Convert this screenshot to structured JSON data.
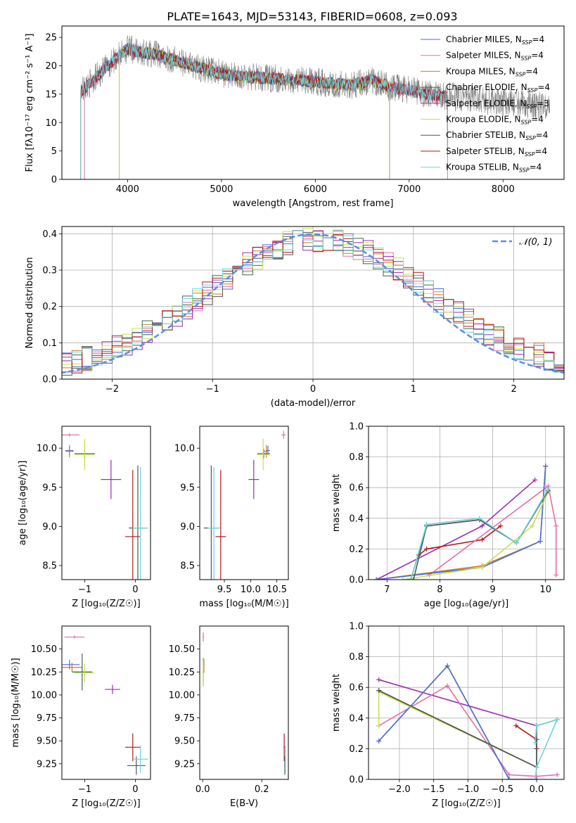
{
  "figure": {
    "title": "PLATE=1643, MJD=53143, FIBERID=0608, z=0.093"
  },
  "colors": {
    "Chabrier MILES": "#4a6fd6",
    "Salpeter MILES": "#e06fa8",
    "Kroupa MILES": "#d07a2a",
    "Chabrier ELODIE": "#3a6a50",
    "Salpeter ELODIE": "#9a2db0",
    "Kroupa ELODIE": "#c8e24a",
    "Chabrier STELIB": "#555555",
    "Salpeter STELIB": "#b21818",
    "Kroupa STELIB": "#6fd4dc",
    "data": "#808080",
    "gauss": "#5b8ee6"
  },
  "chart_data": [
    {
      "id": "spectrum",
      "type": "line",
      "title": "PLATE=1643, MJD=53143, FIBERID=0608, z=0.093",
      "xlabel": "wavelength [Angstrom, rest frame]",
      "ylabel": "Flux [fλ10⁻¹⁷ erg cm⁻² s⁻¹ A⁻¹]",
      "xlim": [
        3300,
        8650
      ],
      "ylim": [
        0,
        27
      ],
      "xticks": [
        4000,
        5000,
        6000,
        7000,
        8000
      ],
      "yticks": [
        0,
        5,
        10,
        15,
        20,
        25
      ],
      "grid": false,
      "legend_position": "top-right",
      "legend": [
        "Chabrier MILES, N_SSP=4",
        "Salpeter MILES, N_SSP=4",
        "Kroupa MILES, N_SSP=4",
        "Chabrier ELODIE, N_SSP=4",
        "Salpeter ELODIE, N_SSP=3",
        "Kroupa ELODIE, N_SSP=4",
        "Chabrier STELIB, N_SSP=4",
        "Salpeter STELIB, N_SSP=4",
        "Kroupa STELIB, N_SSP=4"
      ],
      "continuum": {
        "x": [
          3500,
          3700,
          3850,
          4000,
          4100,
          4300,
          4500,
          4700,
          4900,
          5100,
          5300,
          5500,
          5800,
          6100,
          6400,
          6600,
          6800,
          7000,
          7200,
          7400
        ],
        "y": [
          15.5,
          18.5,
          21.0,
          23.0,
          22.5,
          22.0,
          21.0,
          20.0,
          19.0,
          18.3,
          18.0,
          17.8,
          17.5,
          17.0,
          16.6,
          17.5,
          16.2,
          15.7,
          15.0,
          14.6
        ]
      },
      "data_range": [
        3500,
        8500
      ],
      "model_ranges": {
        "MILES": [
          3540,
          7410
        ],
        "ELODIE": [
          3910,
          6790
        ],
        "STELIB": [
          3500,
          7410
        ]
      }
    },
    {
      "id": "residuals",
      "type": "line",
      "xlabel": "(data-model)/error",
      "ylabel": "Normed distribution",
      "xlim": [
        -2.5,
        2.5
      ],
      "ylim": [
        0,
        0.42
      ],
      "xticks": [
        -2,
        -1,
        0,
        1,
        2
      ],
      "yticks": [
        0.0,
        0.1,
        0.2,
        0.3,
        0.4
      ],
      "grid": true,
      "legend_position": "top-right",
      "legend": [
        "𝒩(0, 1)"
      ],
      "bin_width": 0.1
    },
    {
      "id": "age-z",
      "type": "scatter",
      "xlabel": "Z [log₁₀(Z/Z☉)]",
      "ylabel": "age  [log₁₀(age/yr)]",
      "xlim": [
        -1.45,
        0.3
      ],
      "ylim": [
        8.32,
        10.28
      ],
      "xticks": [
        -1,
        0
      ],
      "yticks": [
        8.5,
        9.0,
        9.5,
        10.0
      ],
      "points": [
        {
          "model": "Salpeter MILES",
          "x": -1.3,
          "y": 10.17,
          "ex": 0.2,
          "ey": 0.0
        },
        {
          "model": "Chabrier MILES",
          "x": -1.3,
          "y": 9.97,
          "ex": 0.08,
          "ey": 0.06
        },
        {
          "model": "Kroupa MILES",
          "x": -1.3,
          "y": 9.96,
          "ex": 0.08,
          "ey": 0.08
        },
        {
          "model": "Chabrier ELODIE",
          "x": -1.0,
          "y": 9.93,
          "ex": 0.2,
          "ey": 0.06
        },
        {
          "model": "Kroupa ELODIE",
          "x": -1.0,
          "y": 9.92,
          "ex": 0.2,
          "ey": 0.2
        },
        {
          "model": "Salpeter ELODIE",
          "x": -0.48,
          "y": 9.6,
          "ex": 0.2,
          "ey": 0.25
        },
        {
          "model": "Salpeter STELIB",
          "x": -0.05,
          "y": 8.87,
          "ex": 0.15,
          "ey": 0.85
        },
        {
          "model": "Chabrier STELIB",
          "x": 0.05,
          "y": 8.98,
          "ex": 0.18,
          "ey": 0.8
        },
        {
          "model": "Kroupa STELIB",
          "x": 0.1,
          "y": 8.98,
          "ex": 0.15,
          "ey": 0.78
        }
      ]
    },
    {
      "id": "age-mass",
      "type": "scatter",
      "xlabel": "mass [log₁₀(M/M☉)]",
      "ylabel": "",
      "xlim": [
        9.03,
        10.72
      ],
      "ylim": [
        8.32,
        10.28
      ],
      "xticks": [
        9.5,
        10.0,
        10.5
      ],
      "yticks": [
        8.5,
        9.0,
        9.5,
        10.0
      ],
      "points": [
        {
          "model": "Salpeter MILES",
          "x": 10.63,
          "y": 10.17,
          "ex": 0.04,
          "ey": 0.05
        },
        {
          "model": "Chabrier MILES",
          "x": 10.33,
          "y": 9.97,
          "ex": 0.04,
          "ey": 0.06
        },
        {
          "model": "Kroupa MILES",
          "x": 10.3,
          "y": 9.96,
          "ex": 0.04,
          "ey": 0.08
        },
        {
          "model": "Chabrier ELODIE",
          "x": 10.25,
          "y": 9.93,
          "ex": 0.12,
          "ey": 0.06
        },
        {
          "model": "Kroupa ELODIE",
          "x": 10.24,
          "y": 9.92,
          "ex": 0.12,
          "ey": 0.2
        },
        {
          "model": "Salpeter ELODIE",
          "x": 10.06,
          "y": 9.6,
          "ex": 0.1,
          "ey": 0.25
        },
        {
          "model": "Salpeter STELIB",
          "x": 9.43,
          "y": 8.87,
          "ex": 0.1,
          "ey": 0.85
        },
        {
          "model": "Chabrier STELIB",
          "x": 9.25,
          "y": 8.98,
          "ex": 0.14,
          "ey": 0.8
        },
        {
          "model": "Kroupa STELIB",
          "x": 9.3,
          "y": 8.98,
          "ex": 0.12,
          "ey": 0.78
        }
      ]
    },
    {
      "id": "massw-age",
      "type": "line",
      "xlabel": "age  [log₁₀(age/yr)]",
      "ylabel": "mass weight",
      "xlim": [
        6.65,
        10.35
      ],
      "ylim": [
        0,
        1
      ],
      "xticks": [
        7,
        8,
        9,
        10
      ],
      "yticks": [
        0.0,
        0.2,
        0.4,
        0.6,
        0.8,
        1.0
      ],
      "grid": true,
      "series": [
        {
          "model": "Salpeter ELODIE",
          "x": [
            6.8,
            8.8,
            9.8
          ],
          "y": [
            0.0,
            0.35,
            0.65
          ]
        },
        {
          "model": "Salpeter STELIB",
          "x": [
            7.6,
            7.75,
            8.8,
            9.15
          ],
          "y": [
            0.16,
            0.2,
            0.26,
            0.35
          ]
        },
        {
          "model": "Salpeter MILES",
          "x": [
            7.8,
            10.05,
            10.2,
            10.2
          ],
          "y": [
            0.03,
            0.61,
            0.35,
            0.03
          ]
        },
        {
          "model": "Kroupa MILES",
          "x": [
            6.8,
            8.8,
            9.9,
            10.0,
            10.0
          ],
          "y": [
            0.0,
            0.09,
            0.25,
            0.74,
            0.74
          ]
        },
        {
          "model": "Chabrier MILES",
          "x": [
            6.8,
            8.8,
            9.9,
            10.0
          ],
          "y": [
            0.0,
            0.08,
            0.25,
            0.74
          ]
        },
        {
          "model": "Kroupa ELODIE",
          "x": [
            7.3,
            8.8,
            9.75,
            10.05
          ],
          "y": [
            0.0,
            0.08,
            0.35,
            0.57
          ]
        },
        {
          "model": "Chabrier ELODIE",
          "x": [
            7.5,
            7.75,
            8.75,
            9.45,
            10.05
          ],
          "y": [
            0.0,
            0.35,
            0.39,
            0.24,
            0.58
          ]
        },
        {
          "model": "Chabrier STELIB",
          "x": [
            7.45,
            7.75,
            8.75,
            9.45,
            10.05
          ],
          "y": [
            0.0,
            0.35,
            0.39,
            0.24,
            0.58
          ]
        },
        {
          "model": "Kroupa STELIB",
          "x": [
            7.45,
            7.75,
            8.75,
            9.45,
            10.05
          ],
          "y": [
            0.0,
            0.36,
            0.4,
            0.24,
            0.59
          ]
        }
      ]
    },
    {
      "id": "mass-z",
      "type": "scatter",
      "xlabel": "Z [log₁₀(Z/Z☉)]",
      "ylabel": "mass [log₁₀(M/M☉)]",
      "xlim": [
        -1.45,
        0.3
      ],
      "ylim": [
        9.08,
        10.75
      ],
      "xticks": [
        -1,
        0
      ],
      "yticks": [
        9.25,
        9.5,
        9.75,
        10.0,
        10.25,
        10.5
      ],
      "points": [
        {
          "model": "Salpeter MILES",
          "x": -1.2,
          "y": 10.63,
          "ex": 0.2,
          "ey": 0.0
        },
        {
          "model": "Chabrier MILES",
          "x": -1.3,
          "y": 10.33,
          "ex": 0.2,
          "ey": 0.05
        },
        {
          "model": "Kroupa MILES",
          "x": -1.25,
          "y": 10.3,
          "ex": 0.2,
          "ey": 0.05
        },
        {
          "model": "Chabrier ELODIE",
          "x": -1.05,
          "y": 10.25,
          "ex": 0.2,
          "ey": 0.2
        },
        {
          "model": "Kroupa ELODIE",
          "x": -1.0,
          "y": 10.24,
          "ex": 0.2,
          "ey": 0.1
        },
        {
          "model": "Salpeter ELODIE",
          "x": -0.45,
          "y": 10.06,
          "ex": 0.15,
          "ey": 0.05
        },
        {
          "model": "Salpeter STELIB",
          "x": -0.05,
          "y": 9.43,
          "ex": 0.15,
          "ey": 0.15
        },
        {
          "model": "Chabrier STELIB",
          "x": 0.02,
          "y": 9.23,
          "ex": 0.18,
          "ey": 0.1
        },
        {
          "model": "Kroupa STELIB",
          "x": 0.1,
          "y": 9.3,
          "ex": 0.15,
          "ey": 0.15
        }
      ]
    },
    {
      "id": "mass-ebv",
      "type": "scatter",
      "xlabel": "E(B-V)",
      "ylabel": "",
      "xlim": [
        -0.01,
        0.29
      ],
      "ylim": [
        9.08,
        10.75
      ],
      "xticks": [
        0.0,
        0.2
      ],
      "yticks": [
        9.25,
        9.5,
        9.75,
        10.0,
        10.25,
        10.5
      ],
      "points": [
        {
          "model": "Salpeter MILES",
          "x": 0.002,
          "y": 10.63,
          "ex": 0.002,
          "ey": 0.05
        },
        {
          "model": "Chabrier MILES",
          "x": 0.004,
          "y": 10.33,
          "ex": 0.002,
          "ey": 0.06
        },
        {
          "model": "Kroupa MILES",
          "x": 0.004,
          "y": 10.3,
          "ex": 0.002,
          "ey": 0.06
        },
        {
          "model": "Chabrier ELODIE",
          "x": 0.002,
          "y": 10.25,
          "ex": 0.002,
          "ey": 0.15
        },
        {
          "model": "Kroupa ELODIE",
          "x": 0.002,
          "y": 10.24,
          "ex": 0.002,
          "ey": 0.15
        },
        {
          "model": "Salpeter STELIB",
          "x": 0.276,
          "y": 9.43,
          "ex": 0.002,
          "ey": 0.15
        },
        {
          "model": "Chabrier STELIB",
          "x": 0.278,
          "y": 9.23,
          "ex": 0.002,
          "ey": 0.1
        },
        {
          "model": "Kroupa STELIB",
          "x": 0.28,
          "y": 9.3,
          "ex": 0.002,
          "ey": 0.15
        }
      ]
    },
    {
      "id": "massw-z",
      "type": "line",
      "xlabel": "Z [log₁₀(Z/Z☉)]",
      "ylabel": "mass weight",
      "xlim": [
        -2.45,
        0.4
      ],
      "ylim": [
        0,
        1
      ],
      "xticks": [
        -2.0,
        -1.5,
        -1.0,
        -0.5,
        0.0
      ],
      "yticks": [
        0.0,
        0.2,
        0.4,
        0.6,
        0.8,
        1.0
      ],
      "grid": true,
      "series": [
        {
          "model": "Salpeter ELODIE",
          "x": [
            -2.3,
            0.0
          ],
          "y": [
            0.65,
            0.35
          ]
        },
        {
          "model": "Salpeter STELIB",
          "x": [
            -0.3,
            0.0,
            0.0
          ],
          "y": [
            0.35,
            0.26,
            0.2
          ]
        },
        {
          "model": "Salpeter MILES",
          "x": [
            -2.3,
            -1.3,
            -0.4,
            0.0,
            0.3
          ],
          "y": [
            0.35,
            0.61,
            0.03,
            0.02,
            0.03
          ]
        },
        {
          "model": "Kroupa MILES",
          "x": [
            -2.3,
            -1.3,
            -0.4,
            0.0
          ],
          "y": [
            0.25,
            0.74,
            0.0,
            0.0
          ]
        },
        {
          "model": "Chabrier MILES",
          "x": [
            -2.3,
            -1.3,
            -0.4,
            0.0
          ],
          "y": [
            0.25,
            0.74,
            0.0,
            0.0
          ]
        },
        {
          "model": "Kroupa ELODIE",
          "x": [
            -2.3,
            -2.3,
            0.0
          ],
          "y": [
            0.35,
            0.57,
            0.08
          ]
        },
        {
          "model": "Chabrier ELODIE",
          "x": [
            -2.3,
            0.0,
            0.0,
            0.3
          ],
          "y": [
            0.58,
            0.08,
            0.35,
            0.39
          ]
        },
        {
          "model": "Chabrier STELIB",
          "x": [
            -2.3,
            0.0,
            0.0
          ],
          "y": [
            0.58,
            0.08,
            0.26
          ]
        },
        {
          "model": "Kroupa STELIB",
          "x": [
            -0.02,
            0.0,
            0.3,
            0.0,
            -0.02
          ],
          "y": [
            0.24,
            0.35,
            0.39,
            0.08,
            0.0
          ]
        }
      ]
    }
  ]
}
